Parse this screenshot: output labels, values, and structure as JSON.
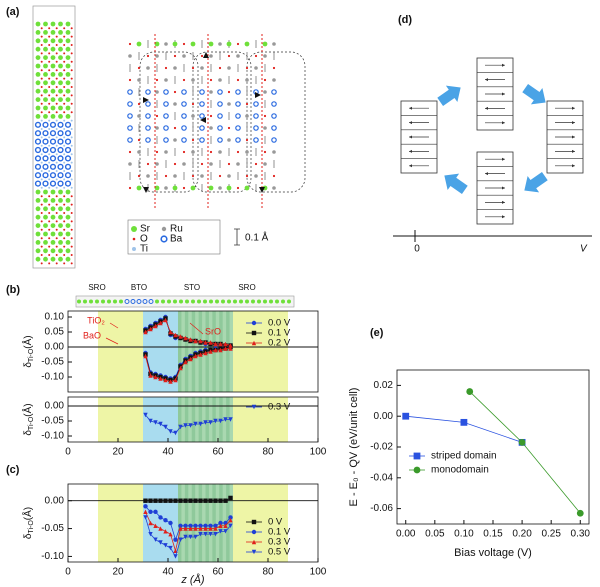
{
  "panel_a": {
    "label": "(a)",
    "legend": [
      "Sr",
      "Ru",
      "O",
      "Ba",
      "Ti"
    ],
    "scale": "0.1 Å"
  },
  "panel_d": {
    "label": "(d)",
    "axis_origin": "0",
    "axis_label": "V"
  },
  "chart_data": [
    {
      "type": "line",
      "label": "(b)",
      "layer_labels": [
        "SRO",
        "BTO",
        "STO",
        "SRO"
      ],
      "ylabel": {
        "symbol": "δ",
        "subscript": "Ti-O",
        "unit": "(Å)"
      },
      "xlim": [
        0,
        100
      ],
      "ylim": [
        -0.15,
        0.12
      ],
      "yticks": [
        {
          "value": 0.1,
          "label": "0.10"
        },
        {
          "value": 0.05,
          "label": "0.05"
        },
        {
          "value": 0,
          "label": "0.00"
        },
        {
          "value": -0.05,
          "label": "-0.05"
        },
        {
          "value": -0.1,
          "label": "-0.10"
        }
      ],
      "regions": [
        {
          "start": 12,
          "end": 30,
          "color": "#eef5a6"
        },
        {
          "start": 30,
          "end": 44,
          "color": "#a9dcef"
        },
        {
          "start": 44,
          "end": 66,
          "color": "#a9d8b0"
        },
        {
          "start": 66,
          "end": 88,
          "color": "#eef5a6"
        }
      ],
      "legend": "right",
      "annotations": [
        "TiO₂",
        "BaO",
        "SrO"
      ],
      "series": [
        {
          "name": "0.0 V",
          "color": "#1f3fd6",
          "marker": "circle",
          "x": [
            31,
            33,
            35,
            37,
            39,
            41,
            43,
            45,
            47,
            49,
            51,
            53,
            55,
            57,
            59,
            61,
            63,
            65,
            null,
            31,
            33,
            35,
            37,
            39,
            41,
            43,
            45,
            47,
            49,
            51,
            53,
            55,
            57,
            59,
            61,
            63,
            65
          ],
          "values": [
            0.06,
            0.07,
            0.08,
            0.09,
            0.1,
            0.04,
            0.03,
            0.03,
            0.025,
            0.02,
            0.02,
            0.015,
            0.01,
            0.01,
            0.01,
            0.005,
            0.005,
            0.005,
            null,
            -0.02,
            -0.085,
            -0.09,
            -0.095,
            -0.1,
            -0.105,
            -0.1,
            -0.06,
            -0.04,
            -0.03,
            -0.02,
            -0.015,
            -0.01,
            -0.01,
            -0.005,
            -0.005,
            0,
            0
          ]
        },
        {
          "name": "0.1 V",
          "color": "#111111",
          "marker": "square",
          "x": [
            31,
            33,
            35,
            37,
            39,
            41,
            43,
            45,
            47,
            49,
            51,
            53,
            55,
            57,
            59,
            61,
            63,
            65,
            null,
            31,
            33,
            35,
            37,
            39,
            41,
            43,
            45,
            47,
            49,
            51,
            53,
            55,
            57,
            59,
            61,
            63,
            65
          ],
          "values": [
            0.055,
            0.065,
            0.075,
            0.085,
            0.095,
            0.045,
            0.035,
            0.03,
            0.025,
            0.02,
            0.02,
            0.015,
            0.015,
            0.01,
            0.01,
            0.01,
            0.005,
            0.005,
            null,
            -0.025,
            -0.09,
            -0.095,
            -0.1,
            -0.105,
            -0.11,
            -0.105,
            -0.065,
            -0.045,
            -0.035,
            -0.025,
            -0.02,
            -0.015,
            -0.01,
            -0.01,
            -0.005,
            -0.005,
            0
          ]
        },
        {
          "name": "0.2 V",
          "color": "#e0201b",
          "marker": "triangle",
          "x": [
            31,
            33,
            35,
            37,
            39,
            41,
            43,
            45,
            47,
            49,
            51,
            53,
            55,
            57,
            59,
            61,
            63,
            65,
            null,
            31,
            33,
            35,
            37,
            39,
            41,
            43,
            45,
            47,
            49,
            51,
            53,
            55,
            57,
            59,
            61,
            63,
            65
          ],
          "values": [
            0.05,
            0.06,
            0.07,
            0.08,
            0.09,
            0.05,
            0.04,
            0.035,
            0.03,
            0.025,
            0.02,
            0.02,
            0.015,
            0.015,
            0.01,
            0.01,
            0.01,
            0.005,
            null,
            -0.03,
            -0.095,
            -0.1,
            -0.105,
            -0.11,
            -0.115,
            -0.11,
            -0.07,
            -0.05,
            -0.04,
            -0.03,
            -0.025,
            -0.02,
            -0.015,
            -0.01,
            -0.01,
            -0.005,
            -0.005
          ]
        }
      ]
    },
    {
      "type": "line",
      "ylabel": {
        "symbol": "δ",
        "subscript": "Ti-O",
        "unit": "(Å)"
      },
      "xlim": [
        0,
        100
      ],
      "ylim": [
        -0.12,
        0.03
      ],
      "xticks": [
        0,
        20,
        40,
        60,
        80,
        100
      ],
      "yticks": [
        {
          "value": 0,
          "label": "0.00"
        },
        {
          "value": -0.05,
          "label": "-0.05"
        },
        {
          "value": -0.1,
          "label": "-0.10"
        }
      ],
      "regions": [
        {
          "start": 12,
          "end": 30,
          "color": "#eef5a6"
        },
        {
          "start": 30,
          "end": 44,
          "color": "#a9dcef"
        },
        {
          "start": 44,
          "end": 66,
          "color": "#a9d8b0"
        },
        {
          "start": 66,
          "end": 88,
          "color": "#eef5a6"
        }
      ],
      "legend": "upper right",
      "series": [
        {
          "name": "0.3 V",
          "color": "#1f3fd6",
          "marker": "triangle-down",
          "x": [
            31,
            33,
            35,
            37,
            39,
            41,
            43,
            45,
            47,
            49,
            51,
            53,
            55,
            57,
            59,
            61,
            63,
            65
          ],
          "values": [
            -0.03,
            -0.05,
            -0.055,
            -0.06,
            -0.07,
            -0.085,
            -0.09,
            -0.07,
            -0.065,
            -0.065,
            -0.06,
            -0.06,
            -0.055,
            -0.055,
            -0.05,
            -0.05,
            -0.045,
            -0.045
          ]
        }
      ]
    },
    {
      "type": "line",
      "label": "(c)",
      "xlabel": "z (Å)",
      "ylabel": {
        "symbol": "δ",
        "subscript": "Ti-O",
        "unit": "(Å)"
      },
      "xlim": [
        0,
        100
      ],
      "ylim": [
        -0.11,
        0.03
      ],
      "xticks": [
        0,
        20,
        40,
        60,
        80,
        100
      ],
      "yticks": [
        {
          "value": 0,
          "label": "0.00"
        },
        {
          "value": -0.05,
          "label": "-0.05"
        },
        {
          "value": -0.1,
          "label": "-0.10"
        }
      ],
      "regions": [
        {
          "start": 12,
          "end": 30,
          "color": "#eef5a6"
        },
        {
          "start": 30,
          "end": 44,
          "color": "#a9dcef"
        },
        {
          "start": 44,
          "end": 66,
          "color": "#a9d8b0"
        },
        {
          "start": 66,
          "end": 88,
          "color": "#eef5a6"
        }
      ],
      "legend": "lower right",
      "series": [
        {
          "name": "0 V",
          "color": "#111111",
          "marker": "square",
          "x": [
            31,
            33,
            35,
            37,
            39,
            41,
            43,
            45,
            47,
            49,
            51,
            53,
            55,
            57,
            59,
            61,
            63,
            65
          ],
          "values": [
            0,
            0,
            0,
            0,
            0,
            0,
            0,
            0,
            0,
            0,
            0,
            0,
            0,
            0,
            0,
            0,
            0,
            0.005
          ]
        },
        {
          "name": "0.1 V",
          "color": "#1f3fd6",
          "marker": "circle",
          "x": [
            31,
            33,
            35,
            37,
            39,
            41,
            43,
            45,
            47,
            49,
            51,
            53,
            55,
            57,
            59,
            61,
            63,
            65
          ],
          "values": [
            -0.01,
            -0.02,
            -0.02,
            -0.03,
            -0.035,
            -0.04,
            -0.07,
            -0.045,
            -0.045,
            -0.045,
            -0.045,
            -0.045,
            -0.045,
            -0.045,
            -0.045,
            -0.04,
            -0.04,
            -0.03
          ]
        },
        {
          "name": "0.3 V",
          "color": "#e0201b",
          "marker": "triangle",
          "x": [
            31,
            33,
            35,
            37,
            39,
            41,
            43,
            45,
            47,
            49,
            51,
            53,
            55,
            57,
            59,
            61,
            63,
            65
          ],
          "values": [
            -0.02,
            -0.04,
            -0.045,
            -0.05,
            -0.055,
            -0.06,
            -0.09,
            -0.05,
            -0.05,
            -0.05,
            -0.05,
            -0.05,
            -0.05,
            -0.05,
            -0.05,
            -0.045,
            -0.045,
            -0.035
          ]
        },
        {
          "name": "0.5 V",
          "color": "#1f3fd6",
          "marker": "triangle-down",
          "x": [
            31,
            33,
            35,
            37,
            39,
            41,
            43,
            45,
            47,
            49,
            51,
            53,
            55,
            57,
            59,
            61,
            63,
            65
          ],
          "values": [
            -0.03,
            -0.06,
            -0.07,
            -0.075,
            -0.08,
            -0.085,
            -0.1,
            -0.07,
            -0.065,
            -0.065,
            -0.065,
            -0.06,
            -0.06,
            -0.06,
            -0.06,
            -0.055,
            -0.055,
            -0.045
          ]
        }
      ]
    },
    {
      "type": "line",
      "label": "(e)",
      "xlabel": "Bias voltage (V)",
      "ylabel_text": "E - E₀ - QV (eV/unit cell)",
      "xlim": [
        -0.015,
        0.315
      ],
      "ylim": [
        -0.07,
        0.03
      ],
      "xticks": [
        {
          "value": 0,
          "label": "0.00"
        },
        {
          "value": 0.05,
          "label": "0.05"
        },
        {
          "value": 0.1,
          "label": "0.10"
        },
        {
          "value": 0.15,
          "label": "0.15"
        },
        {
          "value": 0.2,
          "label": "0.20"
        },
        {
          "value": 0.25,
          "label": "0.25"
        },
        {
          "value": 0.3,
          "label": "0.30"
        }
      ],
      "yticks": [
        {
          "value": 0.02,
          "label": "0.02"
        },
        {
          "value": 0,
          "label": "0.00"
        },
        {
          "value": -0.02,
          "label": "-0.02"
        },
        {
          "value": -0.04,
          "label": "-0.04"
        },
        {
          "value": -0.06,
          "label": "-0.06"
        }
      ],
      "legend": "lower left",
      "series": [
        {
          "name": "striped domain",
          "color": "#2a52e0",
          "marker": "square",
          "x": [
            0,
            0.1,
            0.2
          ],
          "values": [
            0,
            -0.004,
            -0.017
          ]
        },
        {
          "name": "monodomain",
          "color": "#3a9a2a",
          "marker": "circle",
          "x": [
            0.11,
            0.2,
            0.3
          ],
          "values": [
            0.016,
            -0.017,
            -0.063
          ]
        }
      ]
    }
  ]
}
